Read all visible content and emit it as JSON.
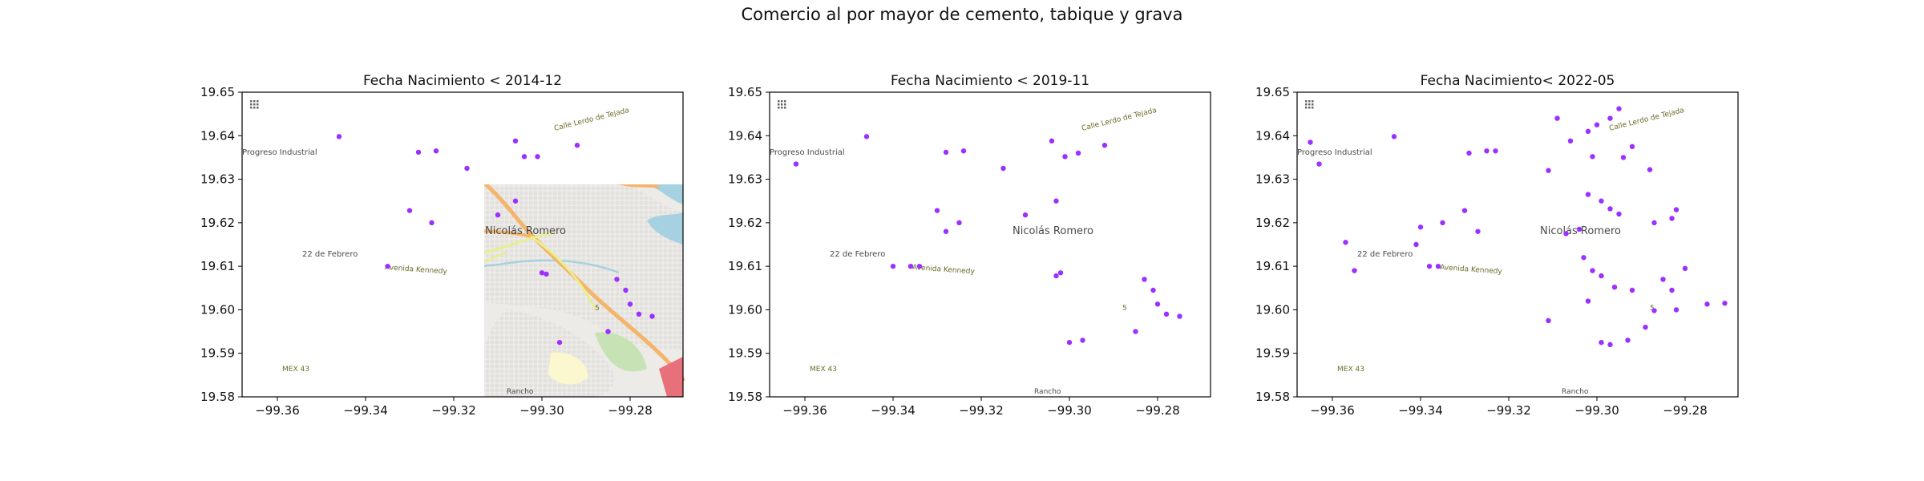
{
  "figure": {
    "title": "Comercio al por mayor de cemento, tabique y grava"
  },
  "map_labels": {
    "town": "Nicolás Romero",
    "district_1": "Progreso Industrial",
    "district_2": "22 de Febrero",
    "district_3": "Rancho",
    "road_1": "Calle Lerdo de Tejada",
    "road_2": "Avenida Kennedy",
    "road_3": "MEX 43",
    "road_4": "5"
  },
  "colors": {
    "marker": "#9b30ff",
    "map_land": "#ecebe7",
    "map_urban": "#dedcd8",
    "park": "#a9cf96",
    "water": "#a6d1e0",
    "major_road": "#f4b46a",
    "secondary_road": "#e9ee8f",
    "axes_frame": "#000000"
  },
  "chart_data": [
    {
      "type": "scatter",
      "title": "Fecha Nacimiento < 2014-12",
      "xlim": [
        -99.368,
        -99.268
      ],
      "ylim": [
        19.58,
        19.65
      ],
      "xticks": [
        -99.36,
        -99.34,
        -99.32,
        -99.3,
        -99.28
      ],
      "yticks": [
        19.58,
        19.59,
        19.6,
        19.61,
        19.62,
        19.63,
        19.64,
        19.65
      ],
      "xtick_labels": [
        "−99.36",
        "−99.34",
        "−99.32",
        "−99.30",
        "−99.28"
      ],
      "ytick_labels": [
        "19.58",
        "19.59",
        "19.60",
        "19.61",
        "19.62",
        "19.63",
        "19.64",
        "19.65"
      ],
      "grid": false,
      "x": [
        -99.346,
        -99.328,
        -99.324,
        -99.317,
        -99.306,
        -99.304,
        -99.301,
        -99.292,
        -99.31,
        -99.306,
        -99.33,
        -99.325,
        -99.335,
        -99.3,
        -99.299,
        -99.283,
        -99.281,
        -99.28,
        -99.275,
        -99.285,
        -99.278,
        -99.296
      ],
      "y": [
        19.6398,
        19.6362,
        19.6365,
        19.6325,
        19.6388,
        19.6352,
        19.6352,
        19.6378,
        19.6218,
        19.625,
        19.6228,
        19.62,
        19.61,
        19.6085,
        19.6082,
        19.607,
        19.6045,
        19.6013,
        19.5985,
        19.595,
        19.599,
        19.5925
      ]
    },
    {
      "type": "scatter",
      "title": "Fecha Nacimiento < 2019-11",
      "xlim": [
        -99.368,
        -99.268
      ],
      "ylim": [
        19.58,
        19.65
      ],
      "xticks": [
        -99.36,
        -99.34,
        -99.32,
        -99.3,
        -99.28
      ],
      "yticks": [
        19.58,
        19.59,
        19.6,
        19.61,
        19.62,
        19.63,
        19.64,
        19.65
      ],
      "xtick_labels": [
        "−99.36",
        "−99.34",
        "−99.32",
        "−99.30",
        "−99.28"
      ],
      "ytick_labels": [
        "19.58",
        "19.59",
        "19.60",
        "19.61",
        "19.62",
        "19.63",
        "19.64",
        "19.65"
      ],
      "grid": false,
      "x": [
        -99.346,
        -99.362,
        -99.328,
        -99.324,
        -99.315,
        -99.304,
        -99.301,
        -99.298,
        -99.292,
        -99.31,
        -99.303,
        -99.33,
        -99.325,
        -99.328,
        -99.34,
        -99.336,
        -99.334,
        -99.302,
        -99.303,
        -99.283,
        -99.281,
        -99.28,
        -99.275,
        -99.285,
        -99.278,
        -99.3,
        -99.297
      ],
      "y": [
        19.6398,
        19.6335,
        19.6362,
        19.6365,
        19.6325,
        19.6388,
        19.6352,
        19.636,
        19.6378,
        19.6218,
        19.625,
        19.6228,
        19.62,
        19.618,
        19.61,
        19.61,
        19.61,
        19.6085,
        19.6078,
        19.607,
        19.6045,
        19.6013,
        19.5985,
        19.595,
        19.599,
        19.5925,
        19.593
      ]
    },
    {
      "type": "scatter",
      "title": "Fecha Nacimiento< 2022-05",
      "xlim": [
        -99.368,
        -99.268
      ],
      "ylim": [
        19.58,
        19.65
      ],
      "xticks": [
        -99.36,
        -99.34,
        -99.32,
        -99.3,
        -99.28
      ],
      "yticks": [
        19.58,
        19.59,
        19.6,
        19.61,
        19.62,
        19.63,
        19.64,
        19.65
      ],
      "xtick_labels": [
        "−99.36",
        "−99.34",
        "−99.32",
        "−99.30",
        "−99.28"
      ],
      "ytick_labels": [
        "19.58",
        "19.59",
        "19.60",
        "19.61",
        "19.62",
        "19.63",
        "19.64",
        "19.65"
      ],
      "grid": false,
      "x": [
        -99.365,
        -99.363,
        -99.346,
        -99.329,
        -99.325,
        -99.323,
        -99.309,
        -99.302,
        -99.3,
        -99.297,
        -99.295,
        -99.292,
        -99.306,
        -99.301,
        -99.294,
        -99.288,
        -99.311,
        -99.302,
        -99.299,
        -99.295,
        -99.297,
        -99.33,
        -99.327,
        -99.335,
        -99.34,
        -99.341,
        -99.357,
        -99.355,
        -99.338,
        -99.336,
        -99.303,
        -99.301,
        -99.299,
        -99.296,
        -99.292,
        -99.285,
        -99.283,
        -99.28,
        -99.275,
        -99.271,
        -99.287,
        -99.282,
        -99.289,
        -99.299,
        -99.297,
        -99.293,
        -99.311,
        -99.302,
        -99.307,
        -99.304,
        -99.287,
        -99.282,
        -99.283
      ],
      "y": [
        19.6385,
        19.6335,
        19.6398,
        19.636,
        19.6365,
        19.6365,
        19.644,
        19.641,
        19.6425,
        19.644,
        19.6462,
        19.6375,
        19.6388,
        19.6352,
        19.635,
        19.6322,
        19.632,
        19.6265,
        19.625,
        19.622,
        19.6232,
        19.6228,
        19.618,
        19.62,
        19.619,
        19.615,
        19.6155,
        19.609,
        19.61,
        19.61,
        19.612,
        19.609,
        19.6078,
        19.6052,
        19.6045,
        19.607,
        19.6045,
        19.6095,
        19.6013,
        19.6015,
        19.5998,
        19.6,
        19.596,
        19.5925,
        19.592,
        19.593,
        19.5975,
        19.602,
        19.6175,
        19.6185,
        19.62,
        19.623,
        19.621
      ]
    }
  ]
}
